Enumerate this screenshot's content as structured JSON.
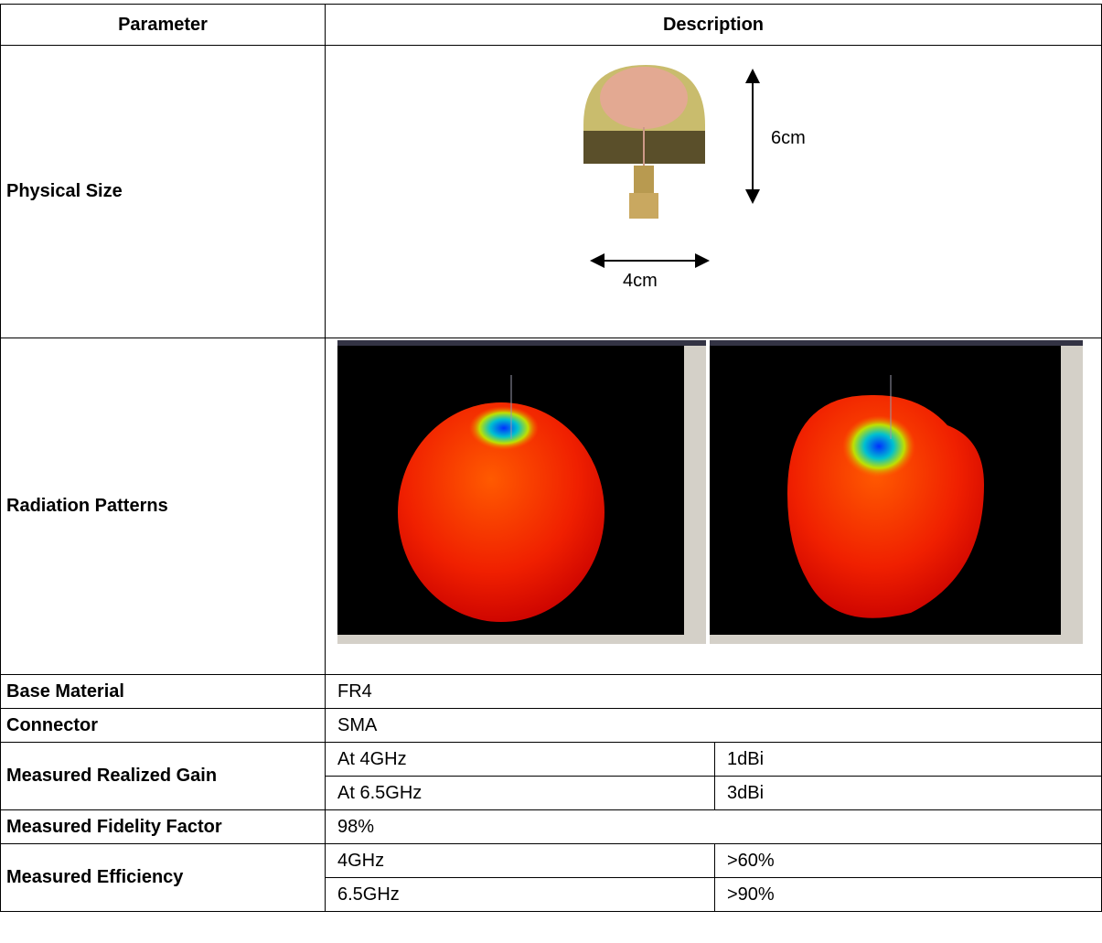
{
  "table": {
    "header": [
      "Parameter",
      "Description"
    ],
    "rows": [
      {
        "parameter": "Physical Size",
        "dimensions": [
          "6cm",
          "4cm"
        ]
      },
      {
        "parameter": "Radiation Patterns"
      },
      {
        "parameter": "Base Material",
        "value": "FR4"
      },
      {
        "parameter": "Connector",
        "value": "SMA"
      },
      {
        "parameter": "Measured Realized Gain",
        "entries": [
          [
            "At 4GHz",
            "1dBi"
          ],
          [
            "At 6.5GHz",
            "3dBi"
          ]
        ]
      },
      {
        "parameter": "Measured Fidelity Factor",
        "value": "98%"
      },
      {
        "parameter": "Measured Efficiency",
        "entries": [
          [
            "4GHz",
            ">60%"
          ],
          [
            "6.5GHz",
            ">90%"
          ]
        ]
      }
    ]
  }
}
